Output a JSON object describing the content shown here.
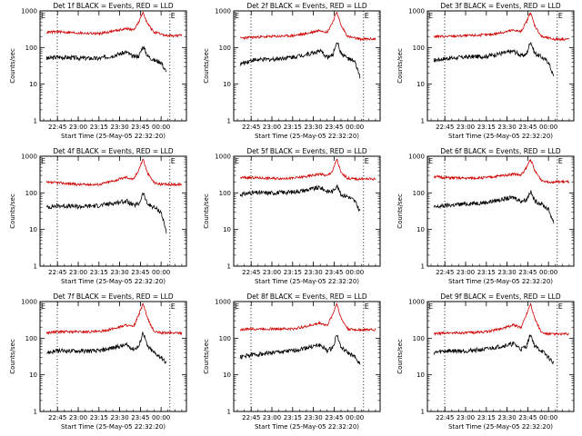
{
  "colors": {
    "events": "#000000",
    "lld": "#d00000",
    "axis": "#000000"
  },
  "shared": {
    "ylabel": "Counts/sec",
    "xlabel": "Start Time (25-May-05 22:32:20)",
    "x_ticks": [
      "22:45",
      "23:00",
      "23:15",
      "23:30",
      "23:45",
      "00:00"
    ],
    "y_ticks": [
      "1",
      "10",
      "100",
      "1000"
    ],
    "corner_mark": "E"
  },
  "chart_data": [
    {
      "type": "line",
      "title": "Det 1f BLACK = Events, RED = LLD",
      "ylabel": "Counts/sec",
      "xlabel": "Start Time (25-May-05 22:32:20)",
      "y_scale": "log",
      "ylim": [
        1,
        1000
      ],
      "x_ticks": [
        "22:45",
        "23:00",
        "23:15",
        "23:30",
        "23:45",
        "00:00"
      ],
      "series": [
        {
          "name": "BLACK = Events",
          "color": "#000000",
          "x": [
            "22:37",
            "22:45",
            "23:00",
            "23:15",
            "23:25",
            "23:35",
            "23:40",
            "23:44",
            "23:47",
            "23:50",
            "23:55",
            "00:00",
            "00:04"
          ],
          "values": [
            50,
            55,
            52,
            50,
            60,
            75,
            55,
            60,
            110,
            60,
            45,
            40,
            20
          ]
        },
        {
          "name": "RED = LLD",
          "color": "#d00000",
          "x": [
            "22:37",
            "22:45",
            "23:00",
            "23:15",
            "23:25",
            "23:35",
            "23:40",
            "23:44",
            "23:47",
            "23:50",
            "23:55",
            "00:00",
            "00:04",
            "00:15"
          ],
          "values": [
            260,
            270,
            250,
            240,
            280,
            330,
            300,
            500,
            950,
            450,
            260,
            230,
            210,
            210
          ]
        }
      ]
    },
    {
      "type": "line",
      "title": "Det 2f BLACK = Events, RED = LLD",
      "ylabel": "Counts/sec",
      "xlabel": "Start Time (25-May-05 22:32:20)",
      "y_scale": "log",
      "ylim": [
        1,
        1000
      ],
      "x_ticks": [
        "22:45",
        "23:00",
        "23:15",
        "23:30",
        "23:45",
        "00:00"
      ],
      "series": [
        {
          "name": "BLACK = Events",
          "color": "#000000",
          "x": [
            "22:37",
            "22:45",
            "23:00",
            "23:15",
            "23:25",
            "23:35",
            "23:40",
            "23:44",
            "23:47",
            "23:50",
            "23:55",
            "00:00",
            "00:04"
          ],
          "values": [
            35,
            45,
            48,
            55,
            65,
            80,
            55,
            60,
            150,
            70,
            50,
            40,
            15
          ]
        },
        {
          "name": "RED = LLD",
          "color": "#d00000",
          "x": [
            "22:37",
            "22:45",
            "23:00",
            "23:15",
            "23:25",
            "23:35",
            "23:40",
            "23:44",
            "23:47",
            "23:50",
            "23:55",
            "00:00",
            "00:04",
            "00:15"
          ],
          "values": [
            180,
            190,
            200,
            210,
            240,
            300,
            260,
            500,
            950,
            400,
            200,
            180,
            170,
            170
          ]
        }
      ]
    },
    {
      "type": "line",
      "title": "Det 3f BLACK = Events, RED = LLD",
      "ylabel": "Counts/sec",
      "xlabel": "Start Time (25-May-05 22:32:20)",
      "y_scale": "log",
      "ylim": [
        1,
        1000
      ],
      "x_ticks": [
        "22:45",
        "23:00",
        "23:15",
        "23:30",
        "23:45",
        "00:00"
      ],
      "series": [
        {
          "name": "BLACK = Events",
          "color": "#000000",
          "x": [
            "22:37",
            "22:45",
            "23:00",
            "23:15",
            "23:25",
            "23:35",
            "23:40",
            "23:44",
            "23:47",
            "23:50",
            "23:55",
            "00:00",
            "00:04"
          ],
          "values": [
            45,
            50,
            55,
            58,
            68,
            80,
            60,
            65,
            150,
            70,
            55,
            40,
            15
          ]
        },
        {
          "name": "RED = LLD",
          "color": "#d00000",
          "x": [
            "22:37",
            "22:45",
            "23:00",
            "23:15",
            "23:25",
            "23:35",
            "23:40",
            "23:44",
            "23:47",
            "23:50",
            "23:55",
            "00:00",
            "00:04",
            "00:15"
          ],
          "values": [
            200,
            200,
            210,
            220,
            250,
            300,
            270,
            500,
            900,
            400,
            200,
            180,
            170,
            170
          ]
        }
      ]
    },
    {
      "type": "line",
      "title": "Det 4f BLACK = Events, RED = LLD",
      "ylabel": "Counts/sec",
      "xlabel": "Start Time (25-May-05 22:32:20)",
      "y_scale": "log",
      "ylim": [
        1,
        1000
      ],
      "x_ticks": [
        "22:45",
        "23:00",
        "23:15",
        "23:30",
        "23:45",
        "00:00"
      ],
      "series": [
        {
          "name": "BLACK = Events",
          "color": "#000000",
          "x": [
            "22:37",
            "22:45",
            "23:00",
            "23:15",
            "23:25",
            "23:35",
            "23:40",
            "23:44",
            "23:47",
            "23:50",
            "23:55",
            "00:00",
            "00:04"
          ],
          "values": [
            40,
            45,
            42,
            45,
            52,
            60,
            45,
            50,
            100,
            50,
            40,
            30,
            8
          ]
        },
        {
          "name": "RED = LLD",
          "color": "#d00000",
          "x": [
            "22:37",
            "22:45",
            "23:00",
            "23:15",
            "23:25",
            "23:35",
            "23:40",
            "23:44",
            "23:47",
            "23:50",
            "23:55",
            "00:00",
            "00:04",
            "00:15"
          ],
          "values": [
            190,
            190,
            170,
            170,
            210,
            270,
            230,
            450,
            850,
            350,
            190,
            170,
            170,
            170
          ]
        }
      ]
    },
    {
      "type": "line",
      "title": "Det 5f BLACK = Events, RED = LLD",
      "ylabel": "Counts/sec",
      "xlabel": "Start Time (25-May-05 22:32:20)",
      "y_scale": "log",
      "ylim": [
        1,
        1000
      ],
      "x_ticks": [
        "22:45",
        "23:00",
        "23:15",
        "23:30",
        "23:45",
        "00:00"
      ],
      "series": [
        {
          "name": "BLACK = Events",
          "color": "#000000",
          "x": [
            "22:37",
            "22:45",
            "23:00",
            "23:15",
            "23:25",
            "23:35",
            "23:40",
            "23:44",
            "23:47",
            "23:50",
            "23:55",
            "00:00",
            "00:04"
          ],
          "values": [
            90,
            100,
            100,
            105,
            120,
            140,
            110,
            110,
            160,
            90,
            80,
            60,
            30
          ]
        },
        {
          "name": "RED = LLD",
          "color": "#d00000",
          "x": [
            "22:37",
            "22:45",
            "23:00",
            "23:15",
            "23:25",
            "23:35",
            "23:40",
            "23:44",
            "23:47",
            "23:50",
            "23:55",
            "00:00",
            "00:04",
            "00:15"
          ],
          "values": [
            260,
            260,
            250,
            250,
            280,
            330,
            290,
            400,
            850,
            350,
            250,
            240,
            240,
            240
          ]
        }
      ]
    },
    {
      "type": "line",
      "title": "Det 6f BLACK = Events, RED = LLD",
      "ylabel": "Counts/sec",
      "xlabel": "Start Time (25-May-05 22:32:20)",
      "y_scale": "log",
      "ylim": [
        1,
        1000
      ],
      "x_ticks": [
        "22:45",
        "23:00",
        "23:15",
        "23:30",
        "23:45",
        "00:00"
      ],
      "series": [
        {
          "name": "BLACK = Events",
          "color": "#000000",
          "x": [
            "22:37",
            "22:45",
            "23:00",
            "23:15",
            "23:25",
            "23:35",
            "23:40",
            "23:44",
            "23:47",
            "23:50",
            "23:55",
            "00:00",
            "00:04"
          ],
          "values": [
            40,
            45,
            50,
            55,
            65,
            75,
            60,
            65,
            110,
            60,
            50,
            35,
            15
          ]
        },
        {
          "name": "RED = LLD",
          "color": "#d00000",
          "x": [
            "22:37",
            "22:45",
            "23:00",
            "23:15",
            "23:25",
            "23:35",
            "23:40",
            "23:44",
            "23:47",
            "23:50",
            "23:55",
            "00:00",
            "00:04",
            "00:15"
          ],
          "values": [
            280,
            260,
            250,
            260,
            290,
            330,
            300,
            480,
            850,
            400,
            220,
            200,
            200,
            200
          ]
        }
      ]
    },
    {
      "type": "line",
      "title": "Det 7f BLACK = Events, RED = LLD",
      "ylabel": "Counts/sec",
      "xlabel": "Start Time (25-May-05 22:32:20)",
      "y_scale": "log",
      "ylim": [
        1,
        1000
      ],
      "x_ticks": [
        "22:45",
        "23:00",
        "23:15",
        "23:30",
        "23:45",
        "00:00"
      ],
      "series": [
        {
          "name": "BLACK = Events",
          "color": "#000000",
          "x": [
            "22:37",
            "22:45",
            "23:00",
            "23:15",
            "23:25",
            "23:35",
            "23:40",
            "23:44",
            "23:47",
            "23:50",
            "23:55",
            "00:00",
            "00:04"
          ],
          "values": [
            40,
            45,
            45,
            45,
            55,
            65,
            50,
            60,
            150,
            60,
            40,
            30,
            20
          ]
        },
        {
          "name": "RED = LLD",
          "color": "#d00000",
          "x": [
            "22:37",
            "22:45",
            "23:00",
            "23:15",
            "23:25",
            "23:35",
            "23:40",
            "23:44",
            "23:47",
            "23:50",
            "23:55",
            "00:00",
            "00:04",
            "00:15"
          ],
          "values": [
            140,
            150,
            150,
            150,
            180,
            230,
            200,
            450,
            900,
            350,
            150,
            140,
            140,
            140
          ]
        }
      ]
    },
    {
      "type": "line",
      "title": "Det 8f BLACK = Events, RED = LLD",
      "ylabel": "Counts/sec",
      "xlabel": "Start Time (25-May-05 22:32:20)",
      "y_scale": "log",
      "ylim": [
        1,
        1000
      ],
      "x_ticks": [
        "22:45",
        "23:00",
        "23:15",
        "23:30",
        "23:45",
        "00:00"
      ],
      "series": [
        {
          "name": "BLACK = Events",
          "color": "#000000",
          "x": [
            "22:37",
            "22:45",
            "23:00",
            "23:15",
            "23:25",
            "23:35",
            "23:40",
            "23:44",
            "23:47",
            "23:50",
            "23:55",
            "00:00",
            "00:04"
          ],
          "values": [
            30,
            35,
            40,
            45,
            55,
            65,
            45,
            55,
            130,
            55,
            40,
            30,
            20
          ]
        },
        {
          "name": "RED = LLD",
          "color": "#d00000",
          "x": [
            "22:37",
            "22:45",
            "23:00",
            "23:15",
            "23:25",
            "23:35",
            "23:40",
            "23:44",
            "23:47",
            "23:50",
            "23:55",
            "00:00",
            "00:04",
            "00:15"
          ],
          "values": [
            170,
            180,
            180,
            180,
            210,
            260,
            220,
            450,
            900,
            350,
            180,
            170,
            170,
            170
          ]
        }
      ]
    },
    {
      "type": "line",
      "title": "Det 9f BLACK = Events, RED = LLD",
      "ylabel": "Counts/sec",
      "xlabel": "Start Time (25-May-05 22:32:20)",
      "y_scale": "log",
      "ylim": [
        1,
        1000
      ],
      "x_ticks": [
        "22:45",
        "23:00",
        "23:15",
        "23:30",
        "23:45",
        "00:00"
      ],
      "series": [
        {
          "name": "BLACK = Events",
          "color": "#000000",
          "x": [
            "22:37",
            "22:45",
            "23:00",
            "23:15",
            "23:25",
            "23:35",
            "23:40",
            "23:44",
            "23:47",
            "23:50",
            "23:55",
            "00:00",
            "00:04"
          ],
          "values": [
            40,
            45,
            45,
            50,
            60,
            70,
            50,
            60,
            130,
            60,
            45,
            30,
            20
          ]
        },
        {
          "name": "RED = LLD",
          "color": "#d00000",
          "x": [
            "22:37",
            "22:45",
            "23:00",
            "23:15",
            "23:25",
            "23:35",
            "23:40",
            "23:44",
            "23:47",
            "23:50",
            "23:55",
            "00:00",
            "00:04",
            "00:15"
          ],
          "values": [
            130,
            140,
            140,
            150,
            180,
            230,
            190,
            450,
            900,
            350,
            140,
            130,
            130,
            130
          ]
        }
      ]
    }
  ]
}
